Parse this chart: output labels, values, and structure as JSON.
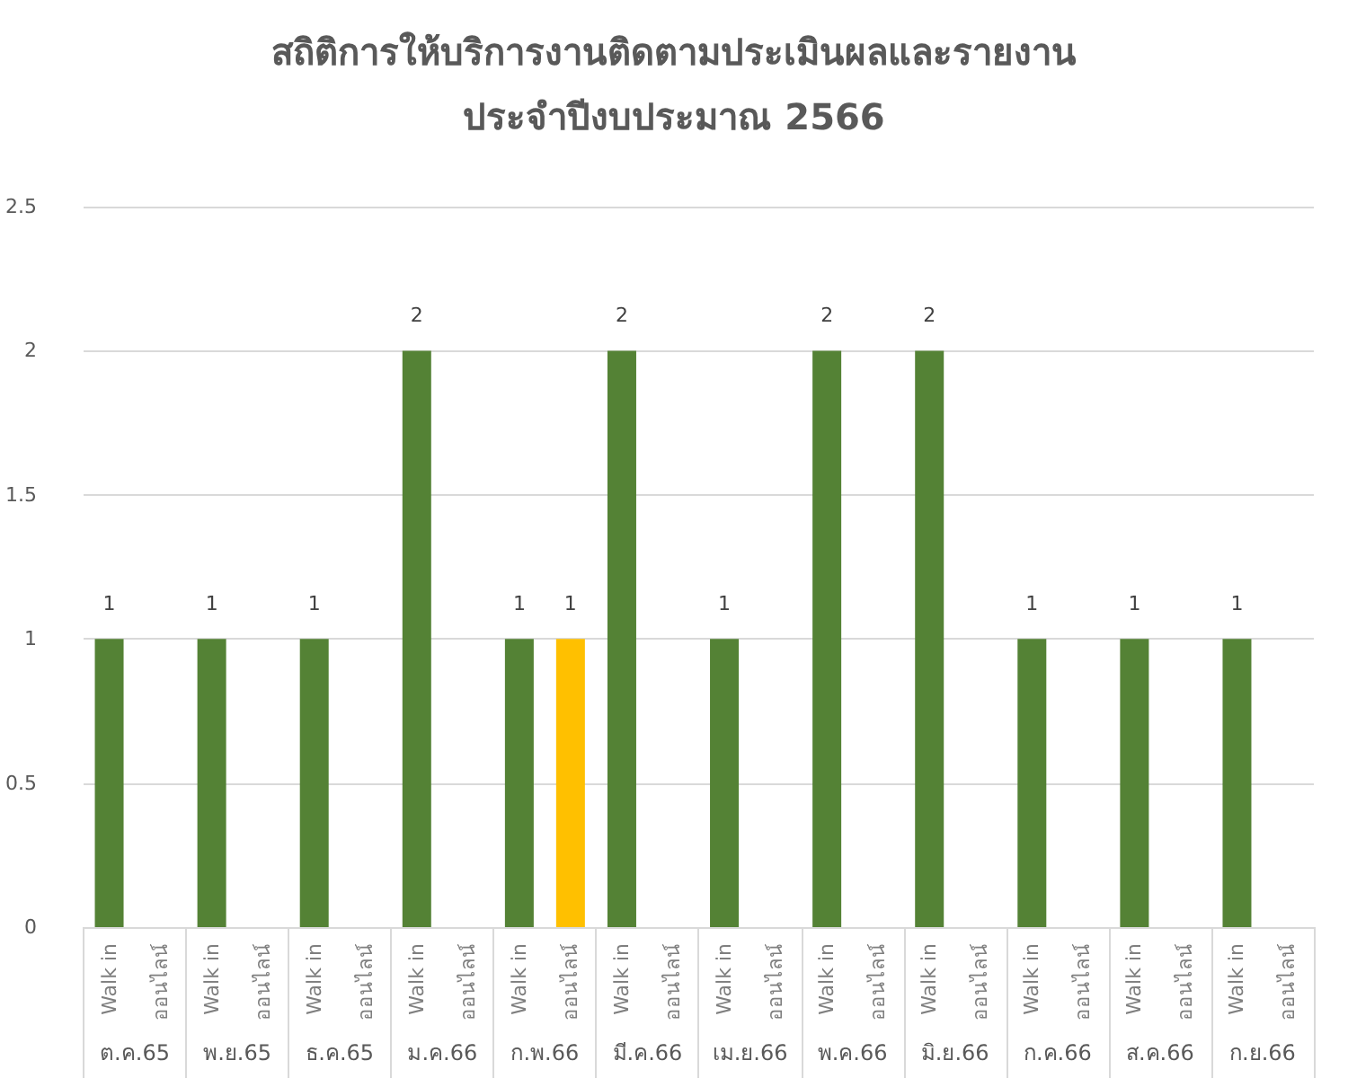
{
  "chart_data": {
    "type": "bar",
    "title": "สถิติการให้บริการงานติดตามประเมินผลและรายงาน",
    "subtitle": "ประจำปีงบประมาณ 2566",
    "categories": [
      "ต.ค.65",
      "พ.ย.65",
      "ธ.ค.65",
      "ม.ค.66",
      "ก.พ.66",
      "มี.ค.66",
      "เม.ย.66",
      "พ.ค.66",
      "มิ.ย.66",
      "ก.ค.66",
      "ส.ค.66",
      "ก.ย.66"
    ],
    "series": [
      {
        "name": "Walk in",
        "color": "#548235",
        "values": [
          1,
          1,
          1,
          2,
          1,
          2,
          1,
          2,
          2,
          1,
          1,
          1
        ]
      },
      {
        "name": "ออนไลน์",
        "color": "#ffc000",
        "values": [
          null,
          null,
          null,
          null,
          1,
          null,
          null,
          null,
          null,
          null,
          null,
          null
        ]
      }
    ],
    "ylim": [
      0,
      2.5
    ],
    "yticks": [
      0,
      0.5,
      1,
      1.5,
      2,
      2.5
    ],
    "grid": "y",
    "legend": false,
    "data_labels": true
  }
}
